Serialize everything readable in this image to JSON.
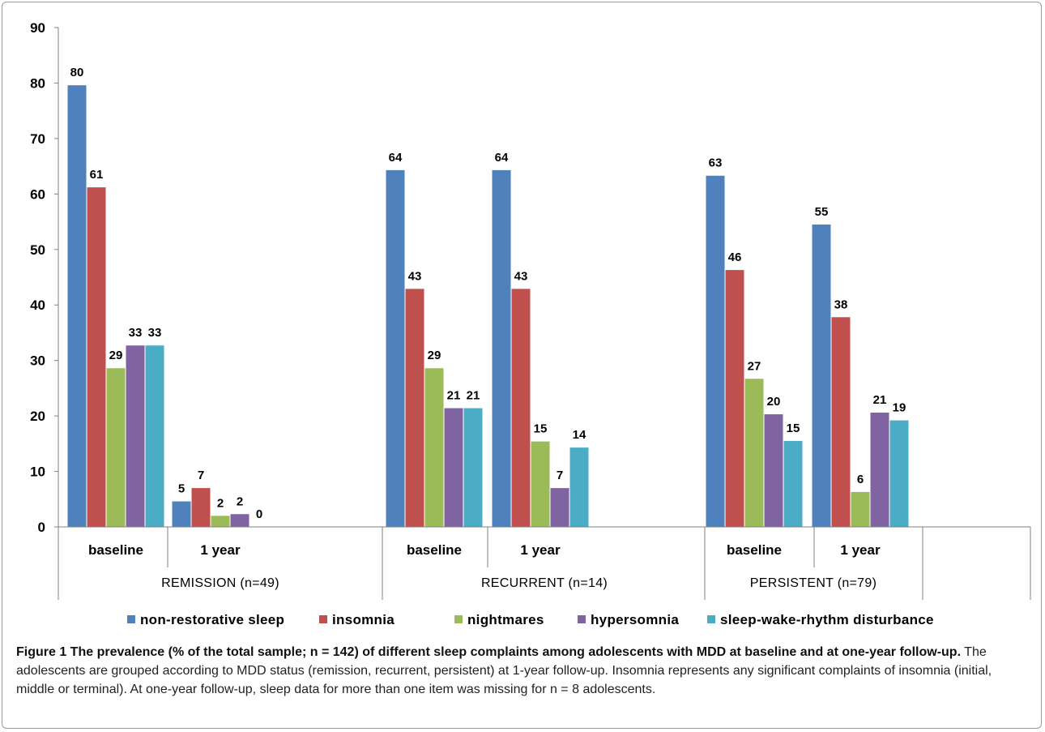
{
  "chart_data": {
    "type": "bar",
    "ylim": [
      0,
      90
    ],
    "yticks": [
      0,
      10,
      20,
      30,
      40,
      50,
      60,
      70,
      80,
      90
    ],
    "grid": false,
    "legend_position": "bottom",
    "groups": [
      {
        "label": "REMISSION (n=49)",
        "subcategories": [
          "baseline",
          "1 year"
        ]
      },
      {
        "label": "RECURRENT (n=14)",
        "subcategories": [
          "baseline",
          "1 year"
        ]
      },
      {
        "label": "PERSISTENT (n=79)",
        "subcategories": [
          "baseline",
          "1 year"
        ]
      }
    ],
    "categories": [
      "baseline",
      "1 year",
      "baseline",
      "1 year",
      "baseline",
      "1 year"
    ],
    "series": [
      {
        "name": "non-restorative sleep",
        "color": "#4f81bd",
        "values": [
          79.6,
          4.6,
          64.3,
          64.3,
          63.3,
          54.5
        ],
        "labels": [
          "80",
          "5",
          "64",
          "64",
          "63",
          "55"
        ]
      },
      {
        "name": "insomnia",
        "color": "#c0504d",
        "values": [
          61.2,
          7.0,
          42.9,
          42.9,
          46.3,
          37.8
        ],
        "labels": [
          "61",
          "7",
          "43",
          "43",
          "46",
          "38"
        ]
      },
      {
        "name": "nightmares",
        "color": "#9bbb59",
        "values": [
          28.6,
          2.0,
          28.6,
          15.4,
          26.7,
          6.3
        ],
        "labels": [
          "29",
          "2",
          "29",
          "15",
          "27",
          "6"
        ]
      },
      {
        "name": "hypersomnia",
        "color": "#8064a2",
        "values": [
          32.7,
          2.3,
          21.4,
          7.0,
          20.3,
          20.6
        ],
        "labels": [
          "33",
          "2",
          "21",
          "7",
          "20",
          "21"
        ]
      },
      {
        "name": "sleep-wake-rhythm disturbance",
        "color": "#4bacc6",
        "values": [
          32.7,
          0,
          21.4,
          14.3,
          15.5,
          19.2
        ],
        "labels": [
          "33",
          "0",
          "21",
          "14",
          "15",
          "19"
        ]
      }
    ]
  },
  "caption": {
    "bold": "Figure 1 The prevalence (% of the total sample; n = 142) of different sleep complaints among adolescents with MDD at baseline and at one-year follow-up.",
    "text": " The adolescents are grouped according to MDD status (remission, recurrent, persistent) at 1-year follow-up. Insomnia represents any significant complaints of insomnia (initial, middle or terminal). At one-year follow-up, sleep data for more than one item was missing for n = 8 adolescents."
  }
}
